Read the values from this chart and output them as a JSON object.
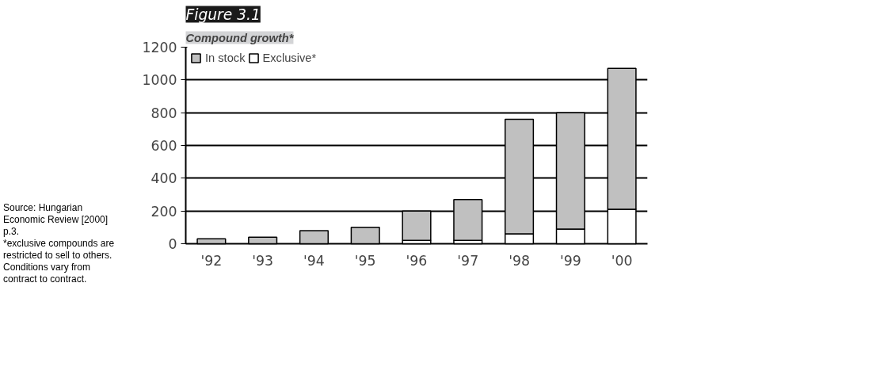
{
  "chart_data": {
    "type": "bar",
    "title": "Figure 3.1",
    "subtitle": "Compound growth*",
    "categories": [
      "'92",
      "'93",
      "'94",
      "'95",
      "'96",
      "'97",
      "'98",
      "'99",
      "'00"
    ],
    "stacked": true,
    "series": [
      {
        "name": "Exclusive*",
        "color": "#ffffff",
        "values": [
          null,
          null,
          null,
          null,
          20,
          20,
          60,
          90,
          210
        ]
      },
      {
        "name": "In stock",
        "color": "#c0c0c0",
        "values": [
          30,
          40,
          80,
          100,
          180,
          250,
          700,
          710,
          860
        ]
      }
    ],
    "ylim": [
      0,
      1200
    ],
    "yticks": [
      0,
      200,
      400,
      600,
      800,
      1000,
      1200
    ],
    "grid": "y",
    "legend": "top left",
    "annotations": [
      "Source: Hungarian Economic Review [2000] p.3.",
      "*exclusive compounds are restricted to sell to others. Conditions vary from contract to contract."
    ]
  }
}
